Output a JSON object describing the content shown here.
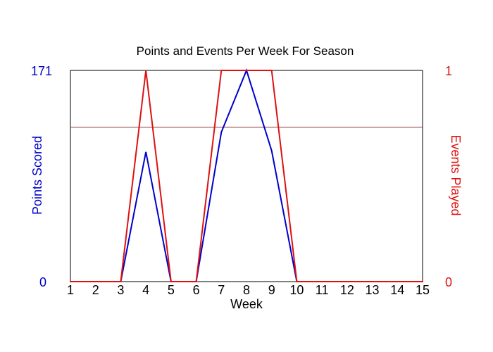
{
  "colors": {
    "background": "#ffffff",
    "axis": "#000000",
    "left_series": "#0000cc",
    "right_series": "#dd1111",
    "guide_line": "#8b3b3b"
  },
  "chart_data": {
    "type": "line",
    "title": "Points and Events Per Week For Season",
    "xlabel": "Week",
    "x": [
      1,
      2,
      3,
      4,
      5,
      6,
      7,
      8,
      9,
      10,
      11,
      12,
      13,
      14,
      15
    ],
    "x_tick_labels": [
      "1",
      "2",
      "3",
      "4",
      "5",
      "6",
      "7",
      "8",
      "9",
      "10",
      "11",
      "12",
      "13",
      "14",
      "15"
    ],
    "xlim": [
      1,
      15
    ],
    "left_axis": {
      "label": "Points Scored",
      "ylim": [
        0,
        171
      ],
      "tick_labels": [
        "0",
        "171"
      ]
    },
    "right_axis": {
      "label": "Events Played",
      "ylim": [
        0,
        1
      ],
      "tick_labels": [
        "0",
        "1"
      ]
    },
    "reference_line": {
      "axis": "left",
      "value": 125
    },
    "series": [
      {
        "name": "Points Scored",
        "axis": "left",
        "color": "#0000cc",
        "values": [
          0,
          0,
          0,
          105,
          0,
          0,
          121,
          171,
          106,
          0,
          0,
          0,
          0,
          0,
          0
        ]
      },
      {
        "name": "Events Played",
        "axis": "right",
        "color": "#dd1111",
        "values": [
          0,
          0,
          0,
          1,
          0,
          0,
          1,
          1,
          1,
          0,
          0,
          0,
          0,
          0,
          0
        ]
      }
    ],
    "grid": false,
    "legend": "none"
  }
}
